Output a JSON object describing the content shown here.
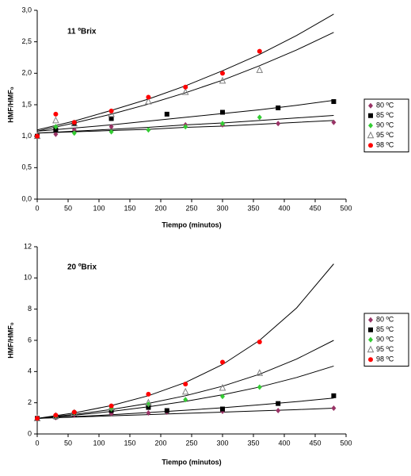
{
  "chart_data": [
    {
      "type": "scatter",
      "title": "11 ºBrix",
      "x_label": "Tiempo (minutos)",
      "y_label": "HMF/HMF₀",
      "x": [
        0,
        30,
        60,
        120,
        180,
        210,
        240,
        300,
        360,
        390,
        480
      ],
      "xlim": [
        0,
        500
      ],
      "xticks": [
        0,
        50,
        100,
        150,
        200,
        250,
        300,
        350,
        400,
        450,
        500
      ],
      "ylim": [
        0,
        3
      ],
      "yticks": [
        {
          "value": 0,
          "label": "0,0"
        },
        {
          "value": 0.5,
          "label": "0,5"
        },
        {
          "value": 1,
          "label": "1,0"
        },
        {
          "value": 1.5,
          "label": "1,5"
        },
        {
          "value": 2,
          "label": "2,0"
        },
        {
          "value": 2.5,
          "label": "2,5"
        },
        {
          "value": 3,
          "label": "3,0"
        }
      ],
      "series": [
        {
          "name": "80 ºC",
          "color": "#993366",
          "marker": "diamond",
          "values": [
            1.0,
            1.03,
            1.1,
            1.15,
            null,
            null,
            1.18,
            1.18,
            null,
            1.2,
            1.22
          ]
        },
        {
          "name": "85 ºC",
          "color": "#000000",
          "marker": "square",
          "values": [
            1.0,
            1.1,
            1.2,
            1.28,
            null,
            1.35,
            null,
            1.38,
            null,
            1.45,
            1.55
          ]
        },
        {
          "name": "90 ºC",
          "color": "#33cc33",
          "marker": "diamond",
          "values": [
            1.0,
            1.15,
            1.05,
            1.07,
            1.1,
            null,
            1.15,
            1.2,
            1.3,
            null,
            null
          ]
        },
        {
          "name": "95 ºC",
          "color": "#808080",
          "marker": "triangle",
          "values": [
            1.0,
            1.25,
            1.2,
            1.35,
            1.55,
            null,
            1.7,
            1.88,
            2.05,
            null,
            null
          ]
        },
        {
          "name": "98 ºC",
          "color": "#ff0000",
          "marker": "circle",
          "values": [
            1.0,
            1.35,
            1.22,
            1.4,
            1.62,
            null,
            1.78,
            2.0,
            2.35,
            null,
            null
          ]
        }
      ],
      "curve_x": [
        0,
        60,
        120,
        180,
        240,
        300,
        360,
        420,
        480
      ],
      "curve_color": "#000000",
      "curves": [
        [
          1.05,
          1.07,
          1.09,
          1.11,
          1.14,
          1.16,
          1.19,
          1.22,
          1.25
        ],
        [
          1.08,
          1.13,
          1.18,
          1.24,
          1.3,
          1.36,
          1.42,
          1.49,
          1.57
        ],
        [
          1.05,
          1.08,
          1.11,
          1.14,
          1.18,
          1.21,
          1.25,
          1.29,
          1.33
        ],
        [
          1.08,
          1.21,
          1.35,
          1.51,
          1.69,
          1.89,
          2.12,
          2.37,
          2.65
        ],
        [
          1.1,
          1.24,
          1.41,
          1.59,
          1.8,
          2.04,
          2.3,
          2.6,
          2.94
        ]
      ]
    },
    {
      "type": "scatter",
      "title": "20 ºBrix",
      "x_label": "Tiempo (minutos)",
      "y_label": "HMF/HMF₀",
      "x": [
        0,
        30,
        60,
        120,
        180,
        210,
        240,
        300,
        360,
        390,
        480
      ],
      "xlim": [
        0,
        500
      ],
      "xticks": [
        0,
        50,
        100,
        150,
        200,
        250,
        300,
        350,
        400,
        450,
        500
      ],
      "ylim": [
        0,
        12
      ],
      "yticks": [
        0,
        2,
        4,
        6,
        8,
        10,
        12
      ],
      "series": [
        {
          "name": "80 ºC",
          "color": "#993366",
          "marker": "diamond",
          "values": [
            1.0,
            1.05,
            1.2,
            1.3,
            1.35,
            1.4,
            null,
            1.45,
            null,
            1.5,
            1.65
          ]
        },
        {
          "name": "85 ºC",
          "color": "#000000",
          "marker": "square",
          "values": [
            1.0,
            1.1,
            1.3,
            1.5,
            1.7,
            1.5,
            null,
            1.6,
            null,
            1.95,
            2.45
          ]
        },
        {
          "name": "90 ºC",
          "color": "#33cc33",
          "marker": "diamond",
          "values": [
            1.0,
            1.15,
            1.35,
            1.6,
            1.9,
            null,
            2.2,
            2.4,
            3.0,
            null,
            null
          ]
        },
        {
          "name": "95 ºC",
          "color": "#808080",
          "marker": "triangle",
          "values": [
            1.0,
            1.15,
            1.35,
            1.7,
            2.0,
            null,
            2.7,
            2.95,
            3.9,
            null,
            null
          ]
        },
        {
          "name": "98 ºC",
          "color": "#ff0000",
          "marker": "circle",
          "values": [
            1.0,
            1.2,
            1.4,
            1.8,
            2.55,
            null,
            3.2,
            4.6,
            5.9,
            null,
            null
          ]
        }
      ],
      "curve_x": [
        0,
        60,
        120,
        180,
        240,
        300,
        360,
        420,
        480
      ],
      "curve_color": "#000000",
      "curves": [
        [
          1.0,
          1.08,
          1.16,
          1.24,
          1.32,
          1.4,
          1.48,
          1.56,
          1.65
        ],
        [
          1.0,
          1.11,
          1.23,
          1.37,
          1.52,
          1.68,
          1.87,
          2.07,
          2.3
        ],
        [
          1.0,
          1.2,
          1.44,
          1.74,
          2.09,
          2.51,
          3.01,
          3.62,
          4.35
        ],
        [
          1.0,
          1.25,
          1.57,
          1.96,
          2.45,
          3.06,
          3.83,
          4.8,
          6.0
        ],
        [
          1.0,
          1.35,
          1.82,
          2.45,
          3.3,
          4.45,
          6.0,
          8.08,
          10.9
        ]
      ]
    }
  ]
}
